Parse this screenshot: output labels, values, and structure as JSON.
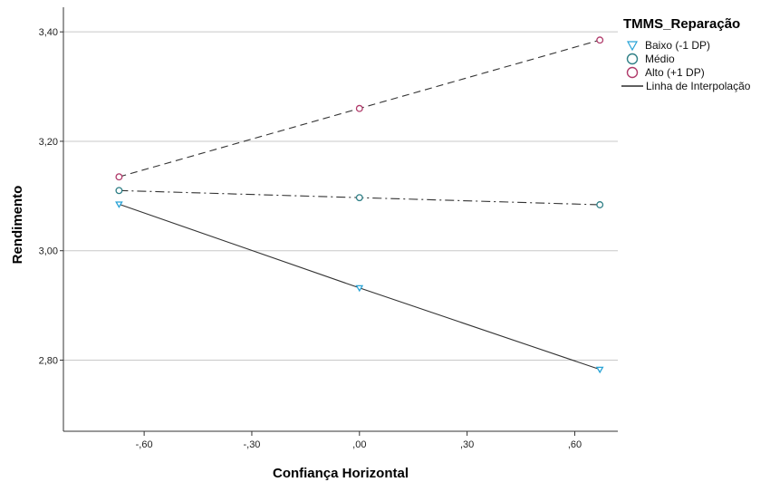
{
  "chart_data": {
    "type": "line",
    "xlabel": "Confiança Horizontal",
    "ylabel": "Rendimento",
    "x_ticks": [
      -0.6,
      -0.3,
      0.0,
      0.3,
      0.6
    ],
    "x_tick_labels": [
      "-,60",
      "-,30",
      ",00",
      ",30",
      ",60"
    ],
    "y_ticks": [
      2.8,
      3.0,
      3.2,
      3.4
    ],
    "y_tick_labels": [
      "2,80",
      "3,00",
      "3,20",
      "3,40"
    ],
    "xlim": [
      -0.825,
      0.72
    ],
    "ylim": [
      2.67,
      3.445
    ],
    "grid": "horizontal",
    "x": [
      -0.67,
      0.0,
      0.67
    ],
    "series": [
      {
        "name": "Baixo (-1 DP)",
        "values": [
          3.085,
          2.932,
          2.783
        ],
        "marker": "triangle-down",
        "line": "solid",
        "color": "#29a3d6"
      },
      {
        "name": "Médio",
        "values": [
          3.11,
          3.097,
          3.084
        ],
        "marker": "circle",
        "line": "dash-dot",
        "color": "#2f7f86"
      },
      {
        "name": "Alto (+1 DP)",
        "values": [
          3.135,
          3.26,
          3.385
        ],
        "marker": "circle",
        "line": "dashed",
        "color": "#b03a6a"
      }
    ],
    "legend": {
      "title": "TMMS_Reparação",
      "position": "top-right",
      "interpolation_label": "Linha de Interpolação"
    }
  }
}
